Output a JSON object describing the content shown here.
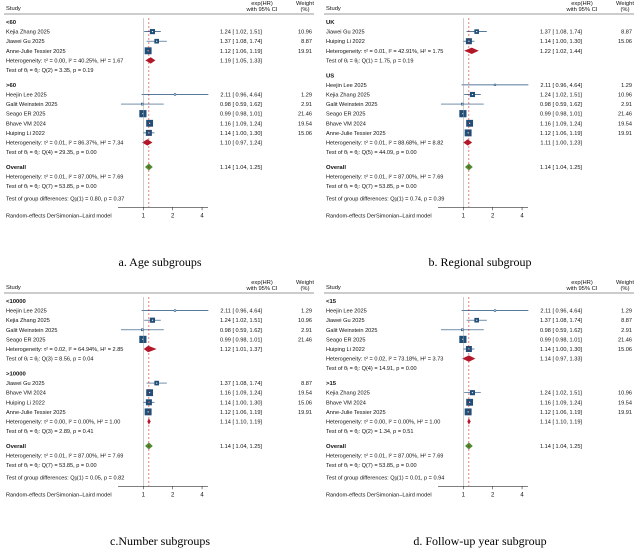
{
  "colors": {
    "study_box": "#1f4e79",
    "subgroup_diamond": "#b2182b",
    "overall_diamond": "#4d8b31",
    "line": "#1f4e79"
  },
  "chart_data": [
    {
      "type": "forest",
      "caption": "a.  Age subgroups",
      "header": {
        "study": "Study",
        "effect": "exp(HR)",
        "ci": "with 95% CI",
        "weight": "Weight",
        "weight_unit": "(%)"
      },
      "xticks": [
        1,
        2,
        4
      ],
      "xscale": "log",
      "footer": "Random-effects DerSimonian–Laird model",
      "groups": [
        {
          "name": "<60",
          "studies": [
            {
              "label": "Kejia Zhang 2025",
              "hr": 1.24,
              "lo": 1.02,
              "hi": 1.51,
              "ci_text": "1.24 [  1.02,  1.51]",
              "weight": "10.96"
            },
            {
              "label": "Jiawei Gu 2025",
              "hr": 1.37,
              "lo": 1.08,
              "hi": 1.74,
              "ci_text": "1.37 [  1.08,  1.74]",
              "weight": "8.87"
            },
            {
              "label": "Anne-Julie Tessier 2025",
              "hr": 1.12,
              "lo": 1.06,
              "hi": 1.19,
              "ci_text": "1.12 [  1.06,  1.19]",
              "weight": "19.91"
            }
          ],
          "heterogeneity": "Heterogeneity: τ² = 0.00, I² = 40.25%, H² = 1.67",
          "pooled": {
            "hr": 1.19,
            "lo": 1.05,
            "hi": 1.33,
            "ci_text": "1.19 [  1.05,  1.33]"
          },
          "test": "Test of θᵢ = θⱼ: Q(2) = 3.35, p = 0.19"
        },
        {
          "name": ">60",
          "studies": [
            {
              "label": "Heejin Lee 2025",
              "hr": 2.11,
              "lo": 0.96,
              "hi": 4.64,
              "ci_text": "2.11 [  0.96,  4.64]",
              "weight": "1.29"
            },
            {
              "label": "Galit Weinstein 2025",
              "hr": 0.98,
              "lo": 0.59,
              "hi": 1.62,
              "ci_text": "0.98 [  0.59,  1.62]",
              "weight": "2.91"
            },
            {
              "label": "Seago ER 2025",
              "hr": 0.99,
              "lo": 0.98,
              "hi": 1.01,
              "ci_text": "0.99 [  0.98,  1.01]",
              "weight": "21.46"
            },
            {
              "label": "Bhave VM 2024",
              "hr": 1.16,
              "lo": 1.09,
              "hi": 1.24,
              "ci_text": "1.16 [  1.09,  1.24]",
              "weight": "19.54"
            },
            {
              "label": "Huiping Li 2022",
              "hr": 1.14,
              "lo": 1.0,
              "hi": 1.3,
              "ci_text": "1.14 [  1.00,  1.30]",
              "weight": "15.06"
            }
          ],
          "heterogeneity": "Heterogeneity: τ² = 0.01, I² = 86.37%, H² = 7.34",
          "pooled": {
            "hr": 1.1,
            "lo": 0.97,
            "hi": 1.24,
            "ci_text": "1.10 [  0.97,  1.24]"
          },
          "test": "Test of θᵢ = θⱼ: Q(4) = 29.35, p = 0.00"
        }
      ],
      "overall": {
        "label": "Overall",
        "hr": 1.14,
        "lo": 1.04,
        "hi": 1.25,
        "ci_text": "1.14 [  1.04,  1.25]",
        "heterogeneity": "Heterogeneity: τ² = 0.01, I² = 87.00%, H² = 7.69",
        "test": "Test of θᵢ = θⱼ: Q(7) = 53.85, p = 0.00",
        "group_test": "Test of group differences: Qᵦ(1) = 0.80, p = 0.37"
      }
    },
    {
      "type": "forest",
      "caption": "b. Regional subgroup",
      "header": {
        "study": "Study",
        "effect": "exp(HR)",
        "ci": "with 95% CI",
        "weight": "Weight",
        "weight_unit": "(%)"
      },
      "xticks": [
        1,
        2,
        4
      ],
      "xscale": "log",
      "footer": "Random-effects DerSimonian–Laird model",
      "groups": [
        {
          "name": "UK",
          "studies": [
            {
              "label": "Jiawei Gu 2025",
              "hr": 1.37,
              "lo": 1.08,
              "hi": 1.74,
              "ci_text": "1.37 [  1.08,  1.74]",
              "weight": "8.87"
            },
            {
              "label": "Huiping Li 2022",
              "hr": 1.14,
              "lo": 1.0,
              "hi": 1.3,
              "ci_text": "1.14 [  1.00,  1.30]",
              "weight": "15.06"
            }
          ],
          "heterogeneity": "Heterogeneity: τ² = 0.01, I² = 42.91%, H² = 1.75",
          "pooled": {
            "hr": 1.22,
            "lo": 1.02,
            "hi": 1.44,
            "ci_text": "1.22 [  1.02,  1.44]"
          },
          "test": "Test of θᵢ = θⱼ: Q(1) = 1.75, p = 0.19"
        },
        {
          "name": "US",
          "studies": [
            {
              "label": "Heejin Lee 2025",
              "hr": 2.11,
              "lo": 0.96,
              "hi": 4.64,
              "ci_text": "2.11 [  0.96,  4.64]",
              "weight": "1.29"
            },
            {
              "label": "Kejia Zhang 2025",
              "hr": 1.24,
              "lo": 1.02,
              "hi": 1.51,
              "ci_text": "1.24 [  1.02,  1.51]",
              "weight": "10.96"
            },
            {
              "label": "Galit Weinstein 2025",
              "hr": 0.98,
              "lo": 0.59,
              "hi": 1.62,
              "ci_text": "0.98 [  0.59,  1.62]",
              "weight": "2.91"
            },
            {
              "label": "Seago ER 2025",
              "hr": 0.99,
              "lo": 0.98,
              "hi": 1.01,
              "ci_text": "0.99 [  0.98,  1.01]",
              "weight": "21.46"
            },
            {
              "label": "Bhave VM 2024",
              "hr": 1.16,
              "lo": 1.09,
              "hi": 1.24,
              "ci_text": "1.16 [  1.09,  1.24]",
              "weight": "19.54"
            },
            {
              "label": "Anne-Julie Tessier 2025",
              "hr": 1.12,
              "lo": 1.06,
              "hi": 1.19,
              "ci_text": "1.12 [  1.06,  1.19]",
              "weight": "19.91"
            }
          ],
          "heterogeneity": "Heterogeneity: τ² = 0.01, I² = 88.68%, H² = 8.82",
          "pooled": {
            "hr": 1.11,
            "lo": 1.0,
            "hi": 1.23,
            "ci_text": "1.11 [  1.00,  1.23]"
          },
          "test": "Test of θᵢ = θⱼ: Q(5) = 44.09, p = 0.00"
        }
      ],
      "overall": {
        "label": "Overall",
        "hr": 1.14,
        "lo": 1.04,
        "hi": 1.25,
        "ci_text": "1.14 [  1.04,  1.25]",
        "heterogeneity": "Heterogeneity: τ² = 0.01, I² = 87.00%, H² = 7.69",
        "test": "Test of θᵢ = θⱼ: Q(7) = 53.85, p = 0.00",
        "group_test": "Test of group differences: Qᵦ(1) = 0.74, p = 0.39"
      }
    },
    {
      "type": "forest",
      "caption": "c.Number subgroups",
      "header": {
        "study": "Study",
        "effect": "exp(HR)",
        "ci": "with 95% CI",
        "weight": "Weight",
        "weight_unit": "(%)"
      },
      "xticks": [
        1,
        2,
        4
      ],
      "xscale": "log",
      "footer": "Random-effects DerSimonian–Laird model",
      "groups": [
        {
          "name": "<10000",
          "studies": [
            {
              "label": "Heejin Lee 2025",
              "hr": 2.11,
              "lo": 0.96,
              "hi": 4.64,
              "ci_text": "2.11 [  0.96,  4.64]",
              "weight": "1.29"
            },
            {
              "label": "Kejia Zhang 2025",
              "hr": 1.24,
              "lo": 1.02,
              "hi": 1.51,
              "ci_text": "1.24 [  1.02,  1.51]",
              "weight": "10.96"
            },
            {
              "label": "Galit Weinstein 2025",
              "hr": 0.98,
              "lo": 0.59,
              "hi": 1.62,
              "ci_text": "0.98 [  0.59,  1.62]",
              "weight": "2.91"
            },
            {
              "label": "Seago ER 2025",
              "hr": 0.99,
              "lo": 0.98,
              "hi": 1.01,
              "ci_text": "0.99 [  0.98,  1.01]",
              "weight": "21.46"
            }
          ],
          "heterogeneity": "Heterogeneity: τ² = 0.02, I² = 64.94%, H² = 2.85",
          "pooled": {
            "hr": 1.12,
            "lo": 1.01,
            "hi": 1.37,
            "ci_text": "1.12 [  1.01,  1.37]"
          },
          "test": "Test of θᵢ = θⱼ: Q(3) = 8.56, p = 0.04"
        },
        {
          "name": ">10000",
          "studies": [
            {
              "label": "Jiawei Gu 2025",
              "hr": 1.37,
              "lo": 1.08,
              "hi": 1.74,
              "ci_text": "1.37 [  1.08,  1.74]",
              "weight": "8.87"
            },
            {
              "label": "Bhave VM 2024",
              "hr": 1.16,
              "lo": 1.09,
              "hi": 1.24,
              "ci_text": "1.16 [  1.09,  1.24]",
              "weight": "19.54"
            },
            {
              "label": "Huiping Li 2022",
              "hr": 1.14,
              "lo": 1.0,
              "hi": 1.3,
              "ci_text": "1.14 [  1.00,  1.30]",
              "weight": "15.06"
            },
            {
              "label": "Anne-Julie Tessier 2025",
              "hr": 1.12,
              "lo": 1.06,
              "hi": 1.19,
              "ci_text": "1.12 [  1.06,  1.19]",
              "weight": "19.91"
            }
          ],
          "heterogeneity": "Heterogeneity: τ² = 0.00, I² = 0.00%, H² = 1.00",
          "pooled": {
            "hr": 1.14,
            "lo": 1.1,
            "hi": 1.19,
            "ci_text": "1.14 [  1.10,  1.19]"
          },
          "test": "Test of θᵢ = θⱼ: Q(3) = 2.89, p = 0.41"
        }
      ],
      "overall": {
        "label": "Overall",
        "hr": 1.14,
        "lo": 1.04,
        "hi": 1.25,
        "ci_text": "1.14 [  1.04,  1.25]",
        "heterogeneity": "Heterogeneity: τ² = 0.01, I² = 87.00%, H² = 7.69",
        "test": "Test of θᵢ = θⱼ: Q(7) = 53.85, p = 0.00",
        "group_test": "Test of group differences: Qᵦ(1) = 0.05, p = 0.82"
      }
    },
    {
      "type": "forest",
      "caption": "d. Follow-up year subgroup",
      "header": {
        "study": "Study",
        "effect": "exp(HR)",
        "ci": "with 95% CI",
        "weight": "Weight",
        "weight_unit": "(%)"
      },
      "xticks": [
        1,
        2,
        4
      ],
      "xscale": "log",
      "footer": "Random-effects DerSimonian–Laird model",
      "groups": [
        {
          "name": "<15",
          "studies": [
            {
              "label": "Heejin Lee 2025",
              "hr": 2.11,
              "lo": 0.96,
              "hi": 4.64,
              "ci_text": "2.11 [  0.96,  4.64]",
              "weight": "1.29"
            },
            {
              "label": "Jiawei Gu 2025",
              "hr": 1.37,
              "lo": 1.08,
              "hi": 1.74,
              "ci_text": "1.37 [  1.08,  1.74]",
              "weight": "8.87"
            },
            {
              "label": "Galit Weinstein 2025",
              "hr": 0.98,
              "lo": 0.59,
              "hi": 1.62,
              "ci_text": "0.98 [  0.59,  1.62]",
              "weight": "2.91"
            },
            {
              "label": "Seago ER 2025",
              "hr": 0.99,
              "lo": 0.98,
              "hi": 1.01,
              "ci_text": "0.99 [  0.98,  1.01]",
              "weight": "21.46"
            },
            {
              "label": "Huiping Li 2022",
              "hr": 1.14,
              "lo": 1.0,
              "hi": 1.3,
              "ci_text": "1.14 [  1.00,  1.30]",
              "weight": "15.06"
            }
          ],
          "heterogeneity": "Heterogeneity: τ² = 0.02, I² = 73.18%, H² = 3.73",
          "pooled": {
            "hr": 1.14,
            "lo": 0.97,
            "hi": 1.33,
            "ci_text": "1.14 [  0.97,  1.33]"
          },
          "test": "Test of θᵢ = θⱼ: Q(4) = 14.91, p = 0.00"
        },
        {
          "name": ">15",
          "studies": [
            {
              "label": "Kejia Zhang 2025",
              "hr": 1.24,
              "lo": 1.02,
              "hi": 1.51,
              "ci_text": "1.24 [  1.02,  1.51]",
              "weight": "10.96"
            },
            {
              "label": "Bhave VM 2024",
              "hr": 1.16,
              "lo": 1.09,
              "hi": 1.24,
              "ci_text": "1.16 [  1.09,  1.24]",
              "weight": "19.54"
            },
            {
              "label": "Anne-Julie Tessier 2025",
              "hr": 1.12,
              "lo": 1.06,
              "hi": 1.19,
              "ci_text": "1.12 [  1.06,  1.19]",
              "weight": "19.91"
            }
          ],
          "heterogeneity": "Heterogeneity: τ² = 0.00, I² = 0.00%, H² = 1.00",
          "pooled": {
            "hr": 1.14,
            "lo": 1.1,
            "hi": 1.19,
            "ci_text": "1.14 [  1.10,  1.19]"
          },
          "test": "Test of θᵢ = θⱼ: Q(2) = 1.34, p = 0.51"
        }
      ],
      "overall": {
        "label": "Overall",
        "hr": 1.14,
        "lo": 1.04,
        "hi": 1.25,
        "ci_text": "1.14 [  1.04,  1.25]",
        "heterogeneity": "Heterogeneity: τ² = 0.01, I² = 87.00%, H² = 7.69",
        "test": "Test of θᵢ = θⱼ: Q(7) = 53.85, p = 0.00",
        "group_test": "Test of group differences: Qᵦ(1) = 0.01, p = 0.94"
      }
    }
  ]
}
